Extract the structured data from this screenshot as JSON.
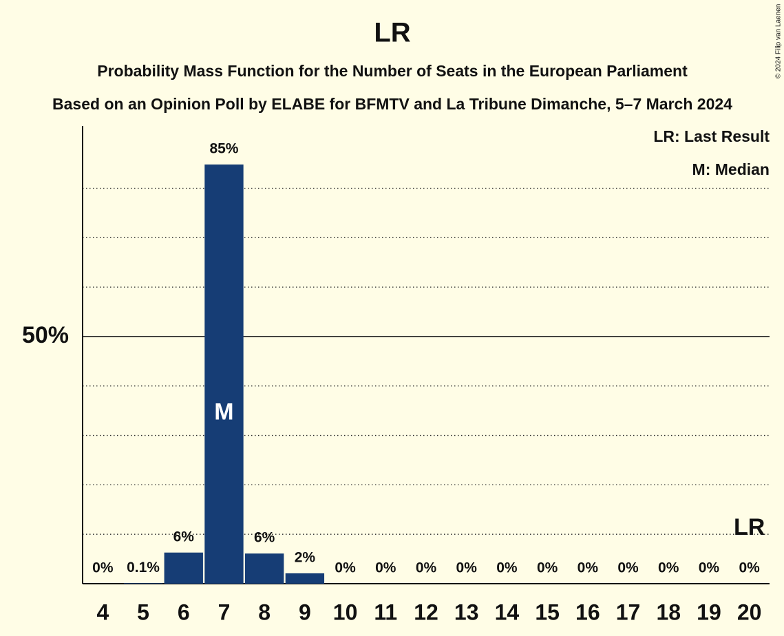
{
  "chart_data": {
    "type": "bar",
    "title": "LR",
    "subtitle": "Probability Mass Function for the Number of Seats in the European Parliament",
    "subtitle2": "Based on an Opinion Poll by ELABE for BFMTV and La Tribune Dimanche, 5–7 March 2024",
    "copyright": "© 2024 Filip van Laenen",
    "categories": [
      "4",
      "5",
      "6",
      "7",
      "8",
      "9",
      "10",
      "11",
      "12",
      "13",
      "14",
      "15",
      "16",
      "17",
      "18",
      "19",
      "20"
    ],
    "values": [
      0,
      0.1,
      6.3,
      84.8,
      6.1,
      2.1,
      0,
      0,
      0,
      0,
      0,
      0,
      0,
      0,
      0,
      0,
      0
    ],
    "value_labels": [
      "0%",
      "0.1%",
      "6%",
      "85%",
      "6%",
      "2%",
      "0%",
      "0%",
      "0%",
      "0%",
      "0%",
      "0%",
      "0%",
      "0%",
      "0%",
      "0%",
      "0%"
    ],
    "color": "#163d75",
    "ylim": [
      0,
      92.6
    ],
    "yticks": [
      {
        "value": 50,
        "label": "50%"
      }
    ],
    "minor_gridlines": [
      10,
      20,
      30,
      40,
      60,
      70,
      80
    ],
    "median": "7",
    "median_label": "M",
    "last_result": "20",
    "last_result_label": "LR",
    "legend": [
      "LR: Last Result",
      "M: Median"
    ]
  }
}
